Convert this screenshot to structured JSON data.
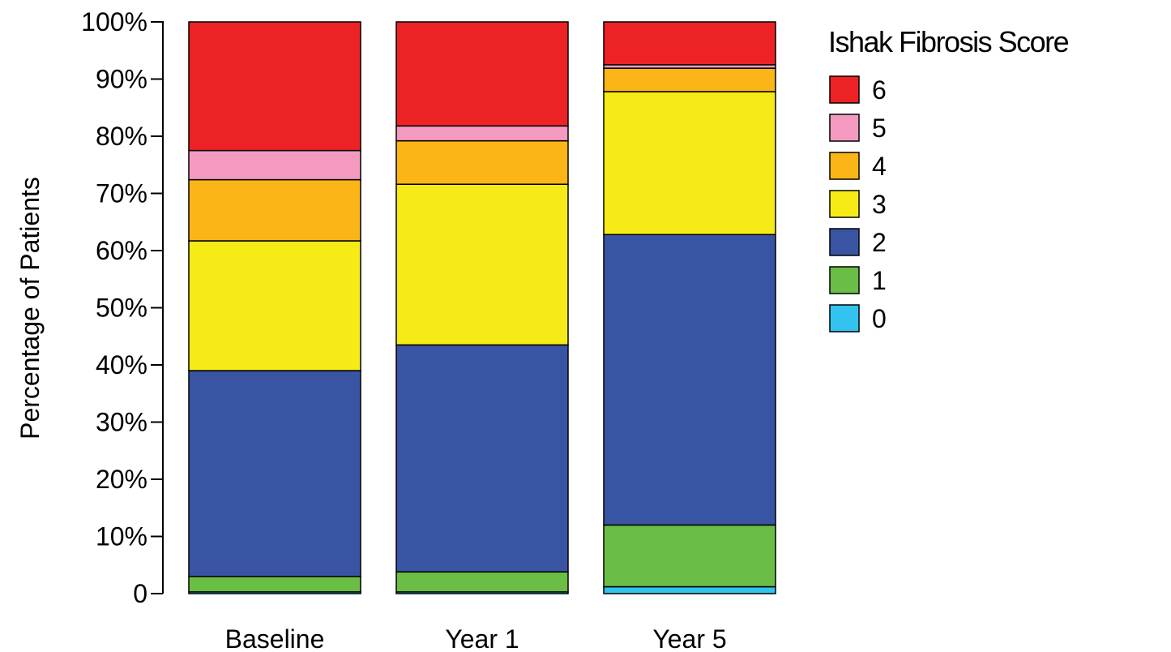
{
  "chart_data": {
    "type": "bar",
    "stacked": true,
    "ylabel": "Percentage of Patients",
    "ylim": [
      0,
      100
    ],
    "yticks": [
      "0",
      "10%",
      "20%",
      "30%",
      "40%",
      "50%",
      "60%",
      "70%",
      "80%",
      "90%",
      "100%"
    ],
    "categories": [
      "Baseline",
      "Year 1",
      "Year 5"
    ],
    "legend_title": "Ishak Fibrosis Score",
    "legend_position": "right",
    "grid": false,
    "series": [
      {
        "name": "0",
        "color": "#33c3f0",
        "values": [
          0.3,
          0.3,
          1.2
        ]
      },
      {
        "name": "1",
        "color": "#6abd45",
        "values": [
          2.7,
          3.5,
          10.8
        ]
      },
      {
        "name": "2",
        "color": "#3a54a4",
        "values": [
          36.0,
          39.7,
          50.8
        ]
      },
      {
        "name": "3",
        "color": "#f6eb16",
        "values": [
          22.7,
          28.1,
          25.0
        ]
      },
      {
        "name": "4",
        "color": "#fbb516",
        "values": [
          10.7,
          7.6,
          4.1
        ]
      },
      {
        "name": "5",
        "color": "#f49ac1",
        "values": [
          5.1,
          2.6,
          0.6
        ]
      },
      {
        "name": "6",
        "color": "#ed2224",
        "values": [
          22.5,
          18.2,
          7.5
        ]
      }
    ]
  }
}
